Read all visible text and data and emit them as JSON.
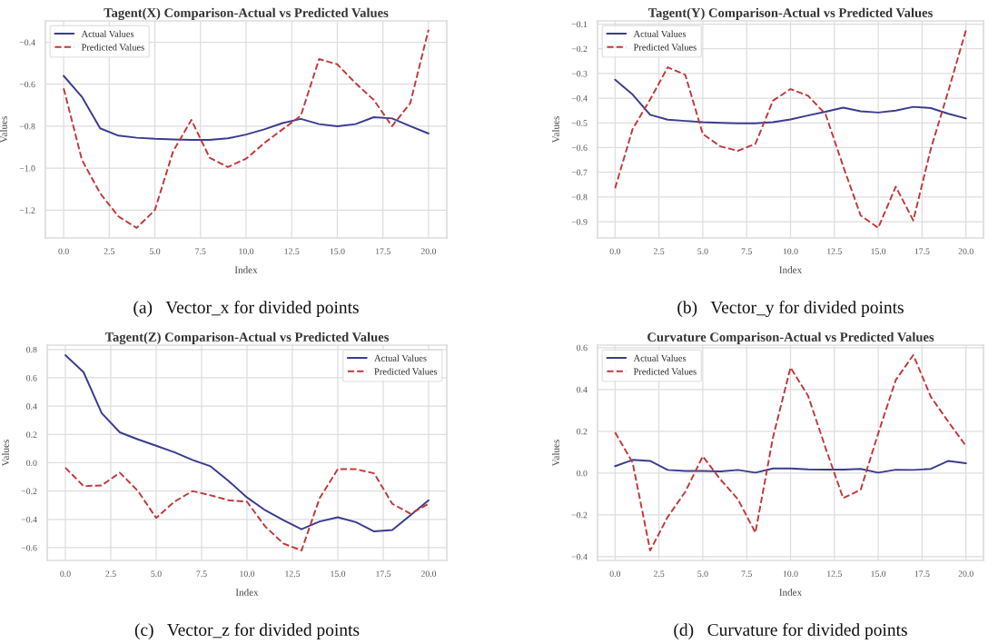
{
  "chart_data": [
    {
      "type": "line",
      "title": "Tagent(X) Comparison-Actual vs Predicted Values",
      "xlabel": "Index",
      "ylabel": "Values",
      "annotations": [
        "(a)   Vector_x for divided points"
      ],
      "legend": "top left",
      "grid": true,
      "x": [
        0,
        1,
        2,
        3,
        4,
        5,
        6,
        7,
        8,
        9,
        10,
        11,
        12,
        13,
        14,
        15,
        16,
        17,
        18,
        19,
        20
      ],
      "xlim": [
        -1,
        21
      ],
      "xticks": [
        {
          "value": 0,
          "label": "0.0"
        },
        {
          "value": 2.5,
          "label": "2.5"
        },
        {
          "value": 5,
          "label": "5.0"
        },
        {
          "value": 7.5,
          "label": "7.5"
        },
        {
          "value": 10,
          "label": "10.0"
        },
        {
          "value": 12.5,
          "label": "12.5"
        },
        {
          "value": 15,
          "label": "15.0"
        },
        {
          "value": 17.5,
          "label": "17.5"
        },
        {
          "value": 20,
          "label": "20.0"
        }
      ],
      "ylim": [
        -1.333,
        -0.298
      ],
      "yticks": [
        {
          "value": -1.2,
          "label": "−1.2"
        },
        {
          "value": -1.0,
          "label": "−1.0"
        },
        {
          "value": -0.8,
          "label": "−0.8"
        },
        {
          "value": -0.6,
          "label": "−0.6"
        },
        {
          "value": -0.4,
          "label": "−0.4"
        }
      ],
      "series": [
        {
          "name": "Actual Values",
          "color": "#3b3b8f",
          "line_style": "solid",
          "values": [
            -0.56,
            -0.66,
            -0.81,
            -0.845,
            -0.855,
            -0.86,
            -0.863,
            -0.865,
            -0.865,
            -0.858,
            -0.84,
            -0.815,
            -0.785,
            -0.765,
            -0.79,
            -0.8,
            -0.79,
            -0.757,
            -0.763,
            -0.8,
            -0.835
          ]
        },
        {
          "name": "Predicted Values",
          "color": "#c0393b",
          "line_style": "dashed",
          "values": [
            -0.62,
            -0.96,
            -1.12,
            -1.23,
            -1.285,
            -1.2,
            -0.92,
            -0.77,
            -0.95,
            -0.995,
            -0.955,
            -0.88,
            -0.815,
            -0.75,
            -0.48,
            -0.505,
            -0.595,
            -0.675,
            -0.8,
            -0.69,
            -0.34
          ]
        }
      ]
    },
    {
      "type": "line",
      "title": "Tagent(Y) Comparison-Actual vs Predicted Values",
      "xlabel": "Index",
      "ylabel": "Values",
      "annotations": [
        "(b)   Vector_y for divided points"
      ],
      "legend": "top left",
      "grid": true,
      "x": [
        0,
        1,
        2,
        3,
        4,
        5,
        6,
        7,
        8,
        9,
        10,
        11,
        12,
        13,
        14,
        15,
        16,
        17,
        18,
        19,
        20
      ],
      "xlim": [
        -1,
        21
      ],
      "xticks": [
        {
          "value": 0,
          "label": "0.0"
        },
        {
          "value": 2.5,
          "label": "2.5"
        },
        {
          "value": 5,
          "label": "5.0"
        },
        {
          "value": 7.5,
          "label": "7.5"
        },
        {
          "value": 10,
          "label": "10.0"
        },
        {
          "value": 12.5,
          "label": "12.5"
        },
        {
          "value": 15,
          "label": "15.0"
        },
        {
          "value": 17.5,
          "label": "17.5"
        },
        {
          "value": 20,
          "label": "20.0"
        }
      ],
      "ylim": [
        -0.966,
        -0.087
      ],
      "yticks": [
        {
          "value": -0.9,
          "label": "−0.9"
        },
        {
          "value": -0.8,
          "label": "−0.8"
        },
        {
          "value": -0.7,
          "label": "−0.7"
        },
        {
          "value": -0.6,
          "label": "−0.6"
        },
        {
          "value": -0.5,
          "label": "−0.5"
        },
        {
          "value": -0.4,
          "label": "−0.4"
        },
        {
          "value": -0.3,
          "label": "−0.3"
        },
        {
          "value": -0.2,
          "label": "−0.2"
        },
        {
          "value": -0.1,
          "label": "−0.1"
        }
      ],
      "series": [
        {
          "name": "Actual Values",
          "color": "#3b3b8f",
          "line_style": "solid",
          "values": [
            -0.325,
            -0.385,
            -0.467,
            -0.487,
            -0.492,
            -0.497,
            -0.5,
            -0.502,
            -0.502,
            -0.497,
            -0.486,
            -0.47,
            -0.455,
            -0.438,
            -0.453,
            -0.458,
            -0.45,
            -0.435,
            -0.44,
            -0.463,
            -0.482
          ]
        },
        {
          "name": "Predicted Values",
          "color": "#c0393b",
          "line_style": "dashed",
          "values": [
            -0.765,
            -0.525,
            -0.405,
            -0.275,
            -0.305,
            -0.545,
            -0.595,
            -0.613,
            -0.585,
            -0.41,
            -0.363,
            -0.39,
            -0.465,
            -0.675,
            -0.875,
            -0.925,
            -0.758,
            -0.895,
            -0.605,
            -0.37,
            -0.125
          ]
        }
      ]
    },
    {
      "type": "line",
      "title": "Tagent(Z) Comparison-Actual vs Predicted Values",
      "xlabel": "Index",
      "ylabel": "Values",
      "annotations": [
        "(c)   Vector_z for divided points"
      ],
      "legend": "top right",
      "grid": true,
      "x": [
        0,
        1,
        2,
        3,
        4,
        5,
        6,
        7,
        8,
        9,
        10,
        11,
        12,
        13,
        14,
        15,
        16,
        17,
        18,
        19,
        20
      ],
      "xlim": [
        -1,
        21
      ],
      "xticks": [
        {
          "value": 0,
          "label": "0.0"
        },
        {
          "value": 2.5,
          "label": "2.5"
        },
        {
          "value": 5,
          "label": "5.0"
        },
        {
          "value": 7.5,
          "label": "7.5"
        },
        {
          "value": 10,
          "label": "10.0"
        },
        {
          "value": 12.5,
          "label": "12.5"
        },
        {
          "value": 15,
          "label": "15.0"
        },
        {
          "value": 17.5,
          "label": "17.5"
        },
        {
          "value": 20,
          "label": "20.0"
        }
      ],
      "ylim": [
        -0.69,
        0.831
      ],
      "yticks": [
        {
          "value": -0.6,
          "label": "−0.6"
        },
        {
          "value": -0.4,
          "label": "−0.4"
        },
        {
          "value": -0.2,
          "label": "−0.2"
        },
        {
          "value": 0,
          "label": "0.0"
        },
        {
          "value": 0.2,
          "label": "0.2"
        },
        {
          "value": 0.4,
          "label": "0.4"
        },
        {
          "value": 0.6,
          "label": "0.6"
        },
        {
          "value": 0.8,
          "label": "0.8"
        }
      ],
      "series": [
        {
          "name": "Actual Values",
          "color": "#3b3b8f",
          "line_style": "solid",
          "values": [
            0.76,
            0.64,
            0.35,
            0.215,
            0.165,
            0.12,
            0.075,
            0.02,
            -0.025,
            -0.13,
            -0.245,
            -0.335,
            -0.405,
            -0.47,
            -0.415,
            -0.385,
            -0.42,
            -0.485,
            -0.475,
            -0.37,
            -0.265
          ]
        },
        {
          "name": "Predicted Values",
          "color": "#c0393b",
          "line_style": "dashed",
          "values": [
            -0.035,
            -0.165,
            -0.16,
            -0.07,
            -0.2,
            -0.39,
            -0.275,
            -0.2,
            -0.23,
            -0.265,
            -0.275,
            -0.45,
            -0.57,
            -0.62,
            -0.25,
            -0.045,
            -0.045,
            -0.075,
            -0.29,
            -0.36,
            -0.29
          ]
        }
      ]
    },
    {
      "type": "line",
      "title": "Curvature Comparison-Actual vs Predicted Values",
      "xlabel": "Index",
      "ylabel": "Values",
      "annotations": [
        "(d)   Curvature for divided points"
      ],
      "legend": "top left",
      "grid": true,
      "x": [
        0,
        1,
        2,
        3,
        4,
        5,
        6,
        7,
        8,
        9,
        10,
        11,
        12,
        13,
        14,
        15,
        16,
        17,
        18,
        19,
        20
      ],
      "xlim": [
        -1,
        21
      ],
      "xticks": [
        {
          "value": 0,
          "label": "0.0"
        },
        {
          "value": 2.5,
          "label": "2.5"
        },
        {
          "value": 5,
          "label": "5.0"
        },
        {
          "value": 7.5,
          "label": "7.5"
        },
        {
          "value": 10,
          "label": "10.0"
        },
        {
          "value": 12.5,
          "label": "12.5"
        },
        {
          "value": 15,
          "label": "15.0"
        },
        {
          "value": 17.5,
          "label": "17.5"
        },
        {
          "value": 20,
          "label": "20.0"
        }
      ],
      "ylim": [
        -0.418,
        0.612
      ],
      "yticks": [
        {
          "value": -0.4,
          "label": "−0.4"
        },
        {
          "value": -0.2,
          "label": "−0.2"
        },
        {
          "value": 0,
          "label": "0.0"
        },
        {
          "value": 0.2,
          "label": "0.2"
        },
        {
          "value": 0.4,
          "label": "0.4"
        },
        {
          "value": 0.6,
          "label": "0.6"
        }
      ],
      "series": [
        {
          "name": "Actual Values",
          "color": "#3b3b8f",
          "line_style": "solid",
          "values": [
            0.033,
            0.063,
            0.058,
            0.015,
            0.01,
            0.01,
            0.008,
            0.015,
            0.002,
            0.022,
            0.022,
            0.018,
            0.017,
            0.017,
            0.02,
            0.002,
            0.016,
            0.015,
            0.02,
            0.058,
            0.047
          ]
        },
        {
          "name": "Predicted Values",
          "color": "#c0393b",
          "line_style": "dashed",
          "values": [
            0.195,
            0.05,
            -0.37,
            -0.21,
            -0.09,
            0.08,
            -0.03,
            -0.125,
            -0.285,
            0.17,
            0.505,
            0.37,
            0.12,
            -0.12,
            -0.08,
            0.19,
            0.445,
            0.565,
            0.365,
            0.245,
            0.13
          ]
        }
      ]
    }
  ]
}
